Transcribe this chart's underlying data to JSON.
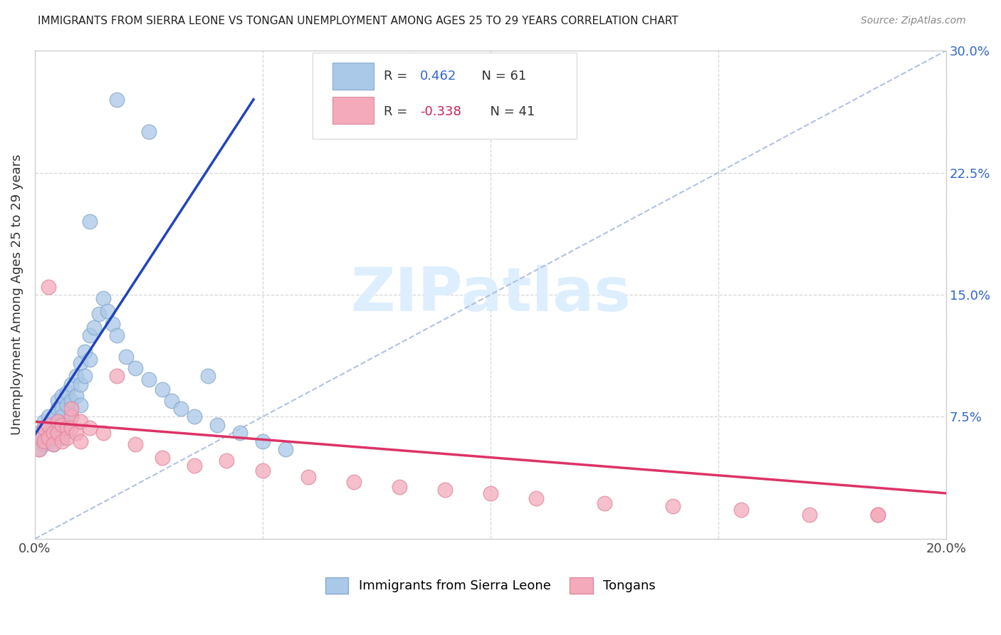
{
  "title": "IMMIGRANTS FROM SIERRA LEONE VS TONGAN UNEMPLOYMENT AMONG AGES 25 TO 29 YEARS CORRELATION CHART",
  "source": "Source: ZipAtlas.com",
  "ylabel": "Unemployment Among Ages 25 to 29 years",
  "xlim": [
    0.0,
    0.2
  ],
  "ylim": [
    0.0,
    0.3
  ],
  "color_blue": "#aac8e8",
  "color_pink": "#f4aabb",
  "edge_blue": "#88aacc",
  "edge_pink": "#e088a0",
  "trendline_blue": "#2244bb",
  "trendline_pink": "#dd3366",
  "diag_color": "#aabbdd",
  "watermark_color": "#ddeeff",
  "blue_x": [
    0.001,
    0.001,
    0.001,
    0.002,
    0.002,
    0.002,
    0.002,
    0.003,
    0.003,
    0.003,
    0.003,
    0.003,
    0.004,
    0.004,
    0.004,
    0.004,
    0.005,
    0.005,
    0.005,
    0.005,
    0.005,
    0.006,
    0.006,
    0.006,
    0.006,
    0.007,
    0.007,
    0.007,
    0.008,
    0.008,
    0.008,
    0.009,
    0.009,
    0.01,
    0.01,
    0.01,
    0.011,
    0.011,
    0.012,
    0.012,
    0.013,
    0.014,
    0.015,
    0.016,
    0.017,
    0.018,
    0.02,
    0.022,
    0.025,
    0.028,
    0.03,
    0.032,
    0.035,
    0.038,
    0.04,
    0.045,
    0.05,
    0.055,
    0.018,
    0.025,
    0.012
  ],
  "blue_y": [
    0.06,
    0.055,
    0.065,
    0.06,
    0.068,
    0.058,
    0.072,
    0.065,
    0.07,
    0.06,
    0.075,
    0.062,
    0.068,
    0.075,
    0.065,
    0.058,
    0.08,
    0.072,
    0.065,
    0.085,
    0.068,
    0.08,
    0.088,
    0.075,
    0.062,
    0.09,
    0.082,
    0.07,
    0.095,
    0.085,
    0.075,
    0.1,
    0.088,
    0.108,
    0.095,
    0.082,
    0.115,
    0.1,
    0.125,
    0.11,
    0.13,
    0.138,
    0.148,
    0.14,
    0.132,
    0.125,
    0.112,
    0.105,
    0.098,
    0.092,
    0.085,
    0.08,
    0.075,
    0.1,
    0.07,
    0.065,
    0.06,
    0.055,
    0.27,
    0.25,
    0.195
  ],
  "pink_x": [
    0.001,
    0.001,
    0.002,
    0.002,
    0.003,
    0.003,
    0.004,
    0.004,
    0.005,
    0.005,
    0.006,
    0.006,
    0.007,
    0.007,
    0.008,
    0.008,
    0.009,
    0.01,
    0.01,
    0.012,
    0.015,
    0.018,
    0.022,
    0.028,
    0.035,
    0.042,
    0.05,
    0.06,
    0.07,
    0.08,
    0.09,
    0.1,
    0.11,
    0.125,
    0.14,
    0.155,
    0.17,
    0.185,
    0.185,
    0.003,
    0.008
  ],
  "pink_y": [
    0.062,
    0.055,
    0.068,
    0.06,
    0.07,
    0.062,
    0.065,
    0.058,
    0.072,
    0.065,
    0.06,
    0.07,
    0.068,
    0.062,
    0.075,
    0.068,
    0.065,
    0.072,
    0.06,
    0.068,
    0.065,
    0.1,
    0.058,
    0.05,
    0.045,
    0.048,
    0.042,
    0.038,
    0.035,
    0.032,
    0.03,
    0.028,
    0.025,
    0.022,
    0.02,
    0.018,
    0.015,
    0.015,
    0.015,
    0.155,
    0.08
  ],
  "blue_trend_x": [
    0.0,
    0.048
  ],
  "blue_trend_y": [
    0.064,
    0.27
  ],
  "pink_trend_x": [
    0.0,
    0.2
  ],
  "pink_trend_y": [
    0.072,
    0.028
  ]
}
